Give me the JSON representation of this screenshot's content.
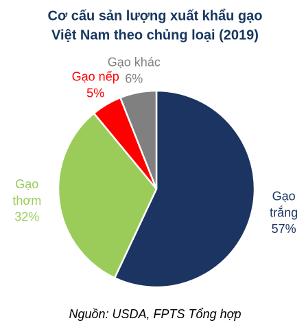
{
  "chart_data": {
    "type": "pie",
    "title": [
      "Cơ cấu sản lượng xuất khẩu gạo",
      "Việt Nam theo chủng loại (2019)"
    ],
    "categories": [
      "Gạo trắng",
      "Gạo thơm",
      "Gạo nếp",
      "Gạo khác"
    ],
    "values": [
      57,
      32,
      5,
      6
    ],
    "value_labels": [
      "57%",
      "32%",
      "5%",
      "6%"
    ],
    "colors": [
      "#1c3461",
      "#9bcc5a",
      "#ff0000",
      "#808080"
    ],
    "source": "Nguồn: USDA, FPTS Tổng hợp"
  }
}
